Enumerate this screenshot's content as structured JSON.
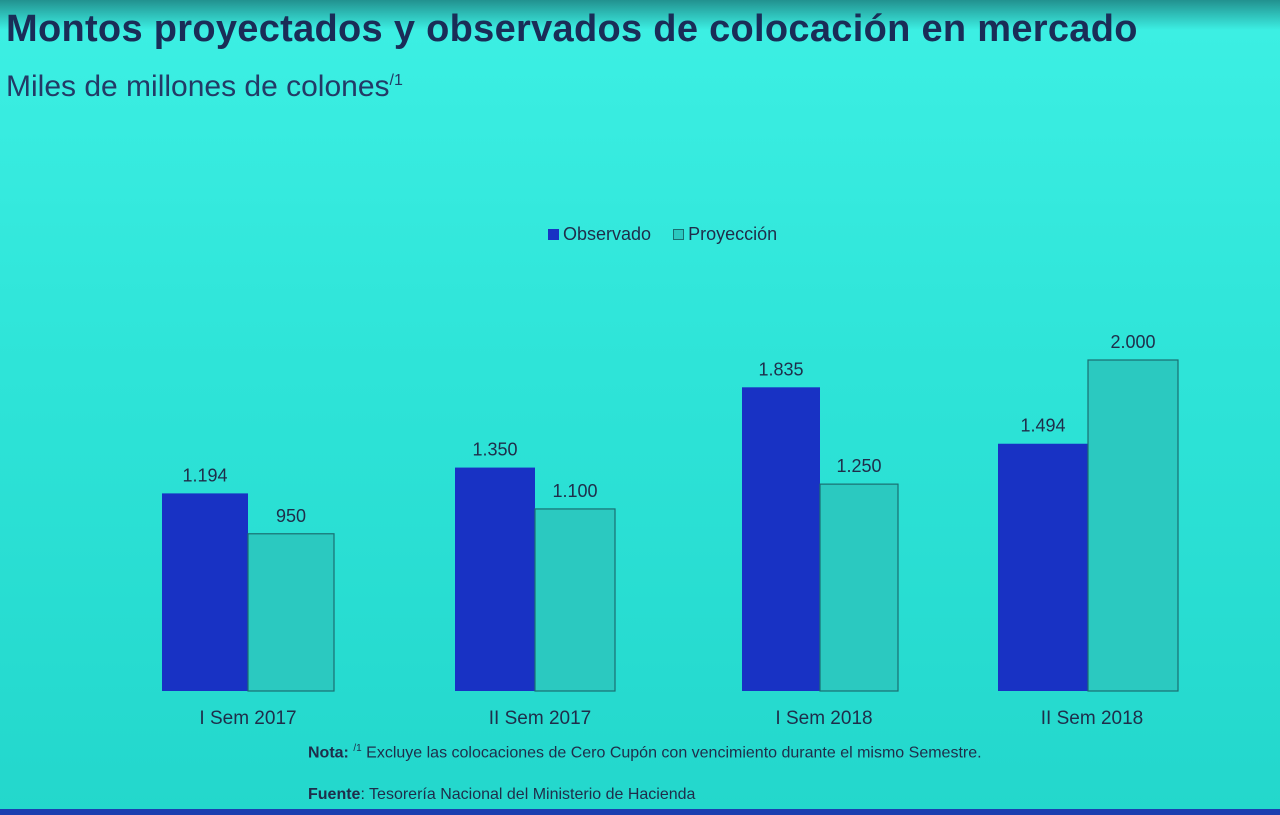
{
  "slide": {
    "title": "Montos proyectados y observados de colocación en mercado",
    "subtitle": "Miles de millones de colones",
    "subtitle_footnote": "/1",
    "note_label": "Nota:",
    "note_marker": "/1",
    "note_text": "Excluye las colocaciones de Cero Cupón con vencimiento durante el mismo Semestre.",
    "source_label": "Fuente",
    "source_text": ": Tesorería Nacional del Ministerio de Hacienda"
  },
  "colors": {
    "observado": "#1832c4",
    "proyeccion": "#2bc9c0",
    "proyeccion_border": "#1a6f72",
    "label": "#1f2d4a"
  },
  "chart_data": {
    "type": "bar",
    "title": "Montos proyectados y observados de colocación en mercado",
    "ylabel": "Miles de millones de colones",
    "xlabel": "",
    "ylim": [
      0,
      2000
    ],
    "grid": false,
    "legend_position": "top-center",
    "categories": [
      "I Sem 2017",
      "II Sem 2017",
      "I Sem 2018",
      "II Sem 2018"
    ],
    "series": [
      {
        "name": "Observado",
        "values": [
          1194,
          1350,
          1835,
          1494
        ],
        "labels": [
          "1.194",
          "1.350",
          "1.835",
          "1.494"
        ]
      },
      {
        "name": "Proyección",
        "values": [
          950,
          1100,
          1250,
          2000
        ],
        "labels": [
          "950",
          "1.100",
          "1.250",
          "2.000"
        ]
      }
    ]
  }
}
